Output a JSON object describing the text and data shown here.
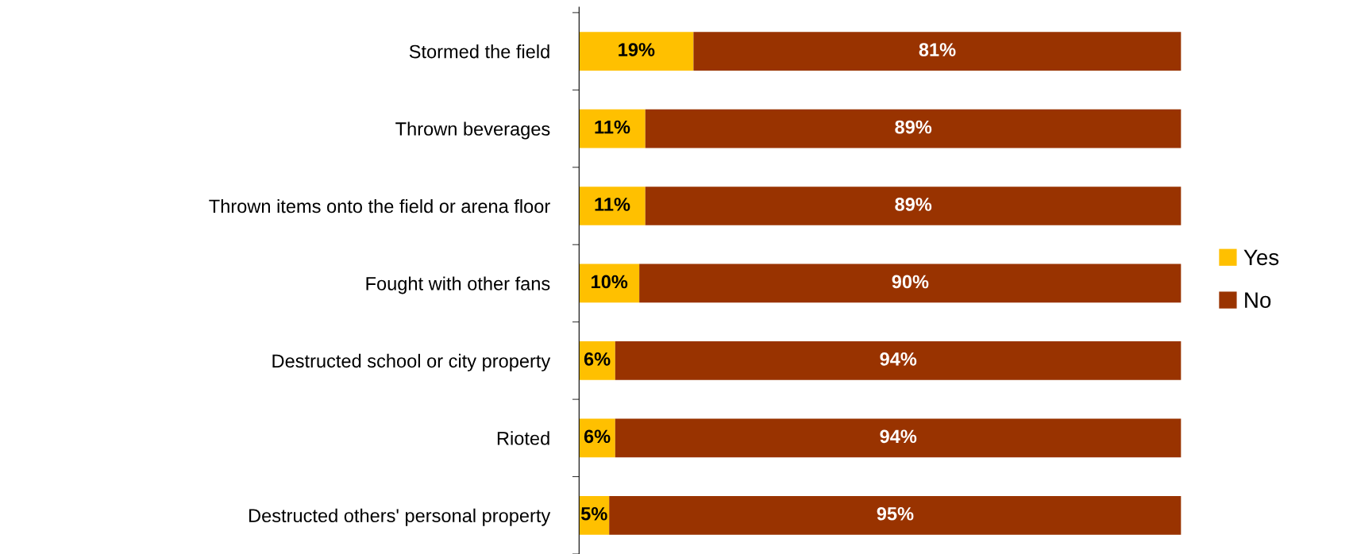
{
  "chart_data": {
    "type": "bar",
    "orientation": "horizontal",
    "stacked": true,
    "categories": [
      "Stormed the field",
      "Thrown beverages",
      "Thrown items onto the field or arena floor",
      "Fought with other fans",
      "Destructed school or city property",
      "Rioted",
      "Destructed others' personal property"
    ],
    "series": [
      {
        "name": "Yes",
        "color": "#ffc000",
        "values": [
          19,
          11,
          11,
          10,
          6,
          6,
          5
        ],
        "value_labels": [
          "19%",
          "11%",
          "11%",
          "10%",
          "6%",
          "6%",
          "5%"
        ]
      },
      {
        "name": "No",
        "color": "#993300",
        "values": [
          81,
          89,
          89,
          90,
          94,
          94,
          95
        ],
        "value_labels": [
          "81%",
          "89%",
          "89%",
          "90%",
          "94%",
          "94%",
          "95%"
        ]
      }
    ],
    "xlim": [
      0,
      100
    ],
    "tick_labels": "y",
    "grid": false,
    "legend": "right"
  }
}
